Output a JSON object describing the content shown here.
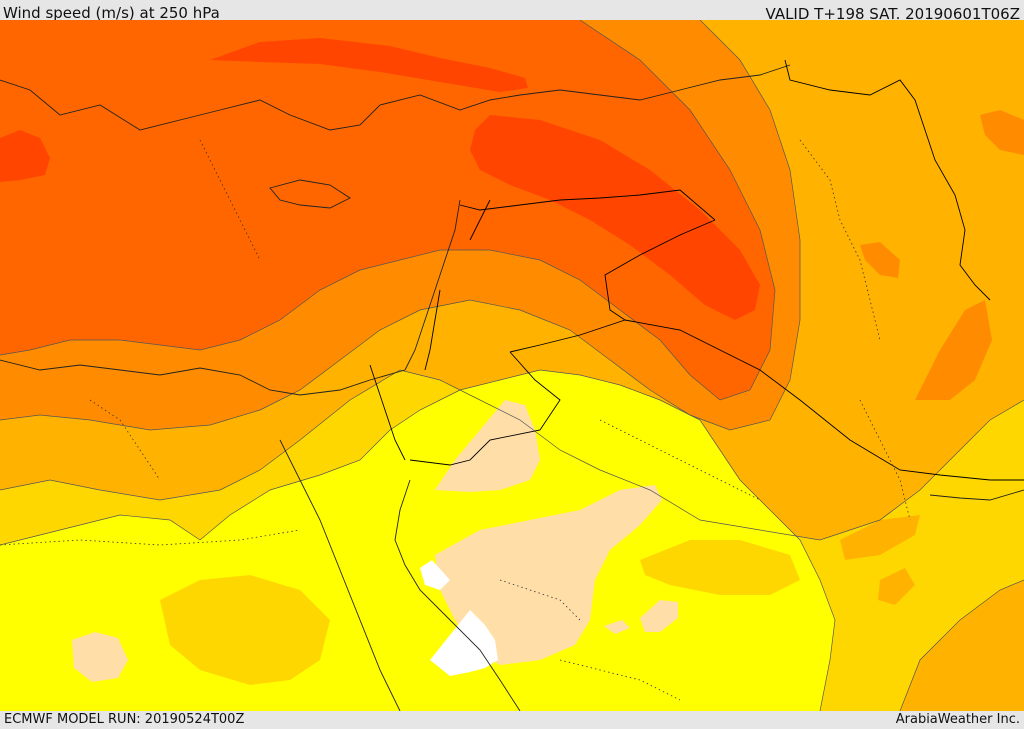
{
  "header": {
    "title": "Wind speed (m/s) at 250 hPa",
    "valid_time": "VALID T+198 SAT. 20190601T06Z"
  },
  "footer": {
    "model_run": "ECMWF MODEL RUN: 20190524T00Z",
    "credit": "ArabiaWeather Inc."
  },
  "colors": {
    "white": "#ffffff",
    "pale": "#ffdea8",
    "yellow": "#ffff00",
    "gold": "#ffd700",
    "amber": "#ffb300",
    "orange": "#ff8c00",
    "dark_orange": "#ff6600",
    "red_orange": "#ff4500"
  }
}
